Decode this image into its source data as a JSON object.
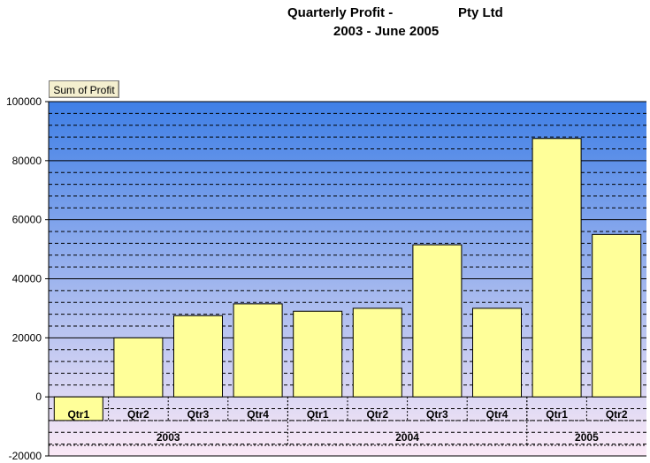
{
  "title": {
    "line1_left": "Quarterly Profit -",
    "line1_right": "Pty Ltd",
    "line2": "2003 - June 2005"
  },
  "field_button": "Sum of Profit",
  "colors": {
    "plot_top": "#3f7fe6",
    "plot_bottom": "#fbe9f6",
    "bar_fill": "#ffff99",
    "bar_stroke": "#000000",
    "grid": "#000000"
  },
  "chart_data": {
    "type": "bar",
    "title": "Quarterly Profit - Pty Ltd 2003 - June 2005",
    "ylabel": "",
    "xlabel": "",
    "ylim": [
      -20000,
      100000
    ],
    "yticks": [
      -20000,
      0,
      20000,
      40000,
      60000,
      80000,
      100000
    ],
    "grid": true,
    "years": [
      {
        "label": "2003",
        "span": 4
      },
      {
        "label": "2004",
        "span": 4
      },
      {
        "label": "2005",
        "span": 2
      }
    ],
    "categories": [
      "Qtr1",
      "Qtr2",
      "Qtr3",
      "Qtr4",
      "Qtr1",
      "Qtr2",
      "Qtr3",
      "Qtr4",
      "Qtr1",
      "Qtr2"
    ],
    "values": [
      -8000,
      20000,
      27500,
      31500,
      29000,
      30000,
      51500,
      30000,
      87500,
      55000
    ]
  }
}
